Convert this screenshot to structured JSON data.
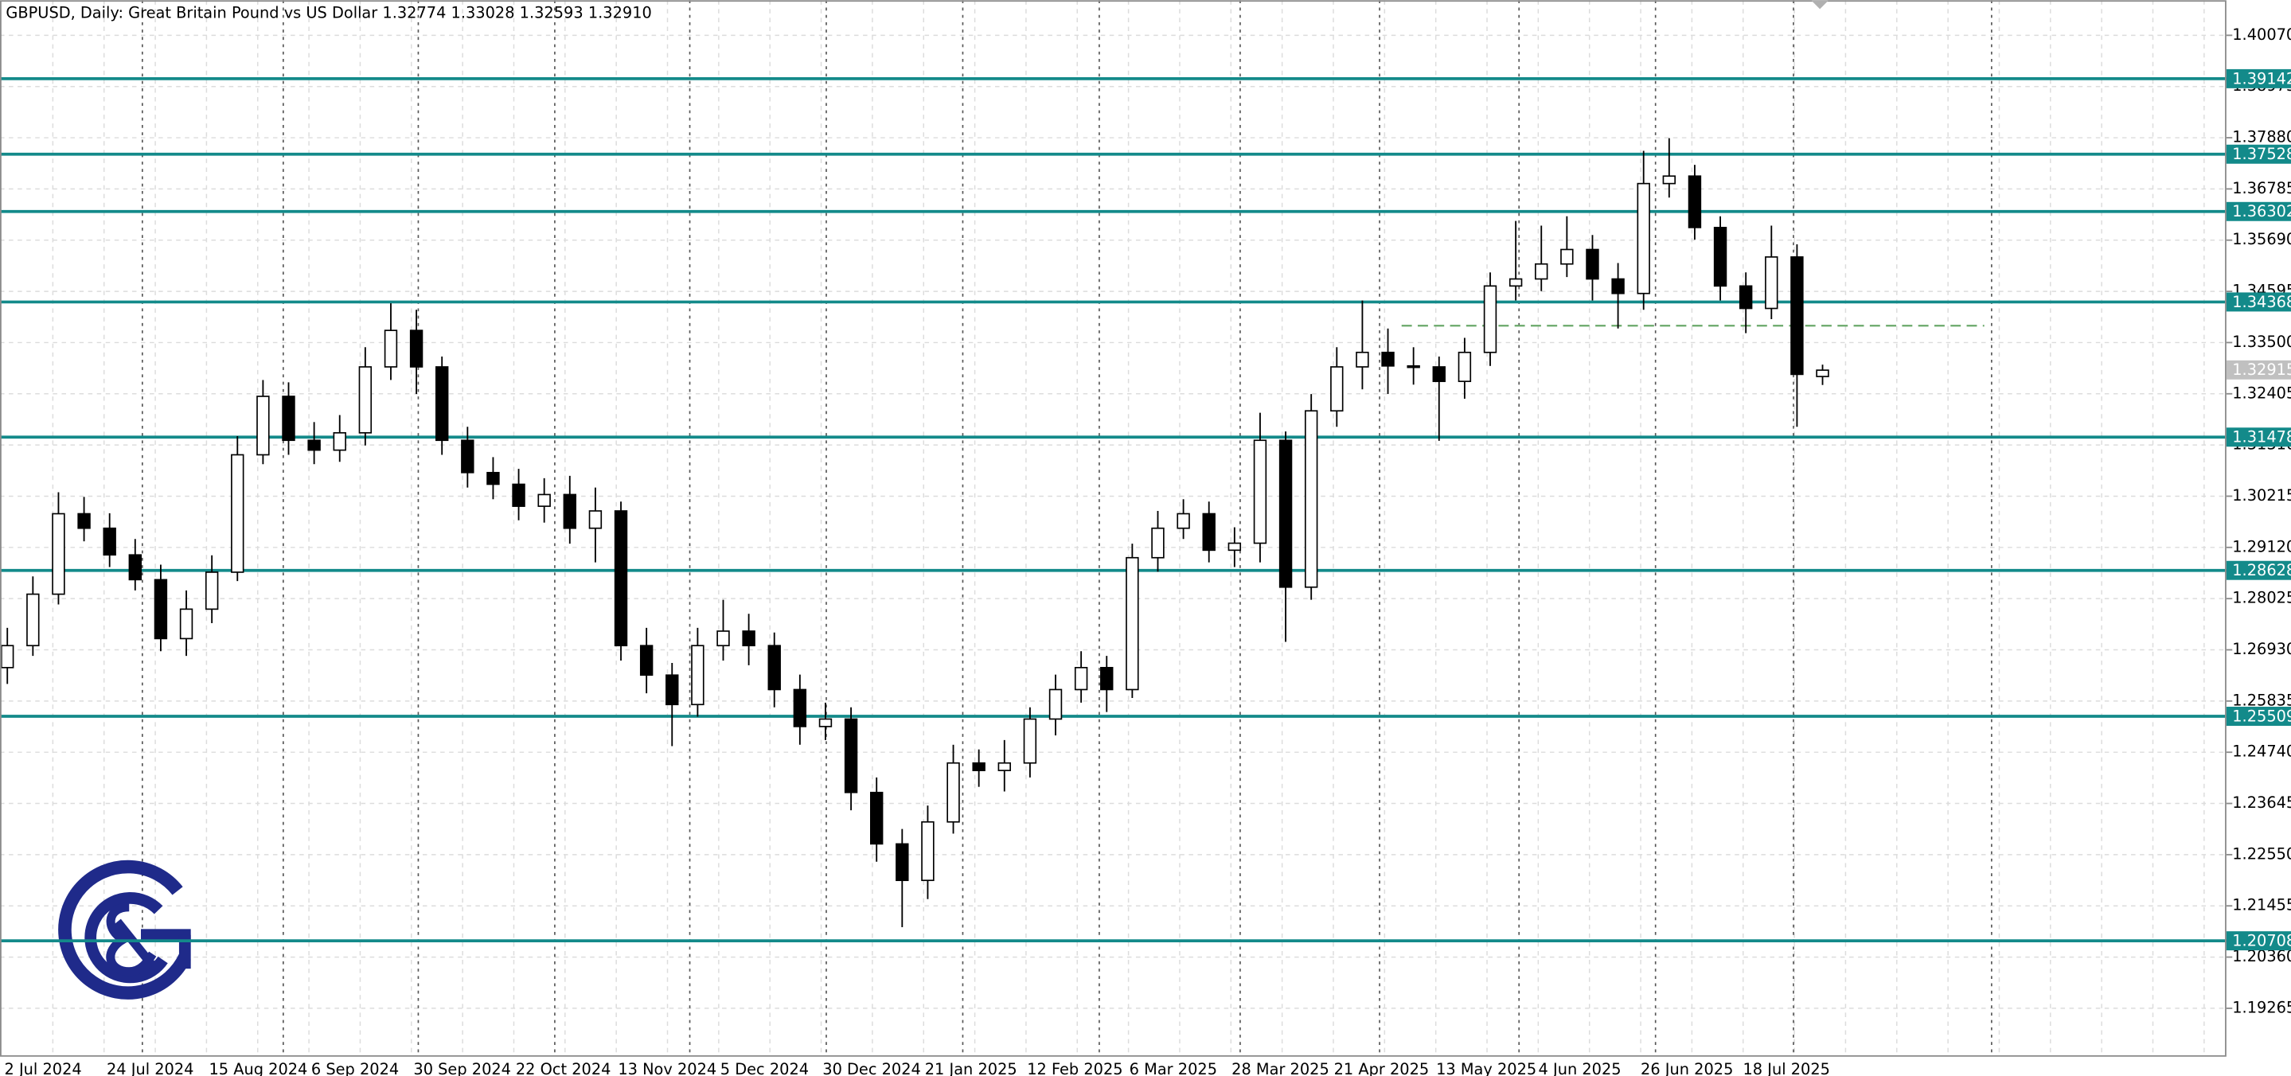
{
  "chart_data": {
    "type": "candlestick",
    "title": "GBPUSD, Daily:  Great Britain Pound vs US Dollar  1.32774 1.33028 1.32593 1.32910",
    "categories": [
      "2 Jul 2024",
      null,
      null,
      null,
      "24 Jul 2024",
      null,
      null,
      null,
      "15 Aug 2024",
      null,
      null,
      null,
      "6 Sep 2024",
      null,
      null,
      null,
      "30 Sep 2024",
      null,
      null,
      null,
      "22 Oct 2024",
      null,
      null,
      null,
      "13 Nov 2024",
      null,
      null,
      null,
      "5 Dec 2024",
      null,
      null,
      null,
      "30 Dec 2024",
      null,
      null,
      null,
      "21 Jan 2025",
      null,
      null,
      null,
      "12 Feb 2025",
      null,
      null,
      null,
      "6 Mar 2025",
      null,
      null,
      null,
      "28 Mar 2025",
      null,
      null,
      null,
      "21 Apr 2025",
      null,
      null,
      null,
      "13 May 2025",
      null,
      null,
      null,
      "4 Jun 2025",
      null,
      null,
      null,
      "26 Jun 2025",
      null,
      null,
      null,
      "18 Jul 2025",
      null,
      null,
      null
    ],
    "open": [
      1.2655,
      1.2702,
      1.2812,
      1.2984,
      1.2953,
      1.2896,
      1.2843,
      1.2717,
      1.278,
      1.2859,
      1.311,
      1.3235,
      1.3141,
      1.312,
      1.3157,
      1.3298,
      1.3376,
      1.3298,
      1.3141,
      1.3072,
      1.3047,
      1.3,
      1.3025,
      1.2953,
      1.299,
      1.2702,
      1.2639,
      1.2576,
      1.2702,
      1.2733,
      1.2702,
      1.2608,
      1.2529,
      1.2545,
      1.2388,
      1.2278,
      1.22,
      1.2325,
      1.2451,
      1.2435,
      1.2451,
      1.2545,
      1.2608,
      1.2655,
      1.2608,
      1.289,
      1.2953,
      1.2984,
      1.2906,
      1.2921,
      1.3141,
      1.2827,
      1.3204,
      1.3298,
      1.3329,
      1.33,
      1.3298,
      1.3267,
      1.3329,
      1.3471,
      1.3486,
      1.3518,
      1.3549,
      1.3486,
      1.3455,
      1.369,
      1.3706,
      1.3596,
      1.3471,
      1.3423,
      1.3533,
      1.32774
    ],
    "high": [
      1.274,
      1.285,
      1.303,
      1.302,
      1.2985,
      1.293,
      1.2875,
      1.282,
      1.2895,
      1.315,
      1.327,
      1.3265,
      1.318,
      1.3195,
      1.334,
      1.3434,
      1.342,
      1.332,
      1.317,
      1.3105,
      1.308,
      1.306,
      1.3065,
      1.304,
      1.301,
      1.274,
      1.2665,
      1.274,
      1.28,
      1.277,
      1.273,
      1.264,
      1.258,
      1.257,
      1.242,
      1.231,
      1.236,
      1.249,
      1.248,
      1.25,
      1.257,
      1.264,
      1.269,
      1.268,
      1.292,
      1.299,
      1.3015,
      1.301,
      1.2955,
      1.32,
      1.316,
      1.324,
      1.334,
      1.344,
      1.338,
      1.334,
      1.332,
      1.336,
      1.35,
      1.361,
      1.36,
      1.362,
      1.358,
      1.352,
      1.376,
      1.3787,
      1.373,
      1.362,
      1.35,
      1.36,
      1.356,
      1.33028
    ],
    "low": [
      1.262,
      1.268,
      1.279,
      1.2925,
      1.287,
      1.282,
      1.269,
      1.268,
      1.275,
      1.284,
      1.309,
      1.311,
      1.309,
      1.3095,
      1.313,
      1.327,
      1.324,
      1.311,
      1.304,
      1.3015,
      1.297,
      1.2965,
      1.292,
      1.288,
      1.267,
      1.26,
      1.2487,
      1.255,
      1.267,
      1.266,
      1.257,
      1.249,
      1.25,
      1.235,
      1.224,
      1.21,
      1.216,
      1.23,
      1.24,
      1.239,
      1.242,
      1.251,
      1.258,
      1.256,
      1.259,
      1.286,
      1.293,
      1.288,
      1.287,
      1.288,
      1.271,
      1.28,
      1.317,
      1.325,
      1.324,
      1.326,
      1.314,
      1.323,
      1.33,
      1.344,
      1.346,
      1.349,
      1.344,
      1.338,
      1.342,
      1.366,
      1.357,
      1.344,
      1.337,
      1.34,
      1.317,
      1.32593
    ],
    "close": [
      1.2702,
      1.2812,
      1.2984,
      1.2953,
      1.2896,
      1.2843,
      1.2717,
      1.278,
      1.2859,
      1.311,
      1.3235,
      1.3141,
      1.312,
      1.3157,
      1.3298,
      1.3376,
      1.3298,
      1.3141,
      1.3072,
      1.3047,
      1.3,
      1.3025,
      1.2953,
      1.299,
      1.2702,
      1.2639,
      1.2576,
      1.2702,
      1.2733,
      1.2702,
      1.2608,
      1.2529,
      1.2545,
      1.2388,
      1.2278,
      1.22,
      1.2325,
      1.2451,
      1.2435,
      1.2451,
      1.2545,
      1.2608,
      1.2655,
      1.2608,
      1.289,
      1.2953,
      1.2984,
      1.2906,
      1.2921,
      1.3141,
      1.2827,
      1.3204,
      1.3298,
      1.3329,
      1.33,
      1.3298,
      1.3267,
      1.3329,
      1.3471,
      1.3486,
      1.3518,
      1.3549,
      1.3486,
      1.3455,
      1.369,
      1.3706,
      1.3596,
      1.3471,
      1.3423,
      1.3533,
      1.3282,
      1.3291
    ],
    "bull_color": "#ffffff",
    "bear_color": "#000000",
    "ylim": [
      1.1823,
      1.4082
    ],
    "yticks": [
      {
        "value": 1.4007,
        "label": "1.40070"
      },
      1.38975,
      {
        "value": 1.3788,
        "label": "1.37880"
      },
      1.36785,
      {
        "value": 1.3569,
        "label": "1.35690"
      },
      1.34595,
      {
        "value": 1.335,
        "label": "1.33500"
      },
      1.32405,
      {
        "value": 1.3131,
        "label": "1.31310"
      },
      1.30215,
      {
        "value": 1.2912,
        "label": "1.29120"
      },
      1.28025,
      {
        "value": 1.2693,
        "label": "1.26930"
      },
      1.25835,
      {
        "value": 1.2474,
        "label": "1.24740"
      },
      1.23645,
      {
        "value": 1.2255,
        "label": "1.22550"
      },
      1.21455,
      {
        "value": 1.2036,
        "label": "1.20360"
      },
      1.19265
    ],
    "grid": true,
    "levels": [
      1.39142,
      1.37528,
      1.36302,
      1.34368,
      1.31478,
      1.28628,
      1.25509,
      1.20708
    ],
    "level_color": "#138a8a",
    "current_price": 1.32915,
    "current_price_color": "#c0c0c0",
    "dashed_level": 1.3386,
    "dashed_level_color": "#6aa86a"
  }
}
